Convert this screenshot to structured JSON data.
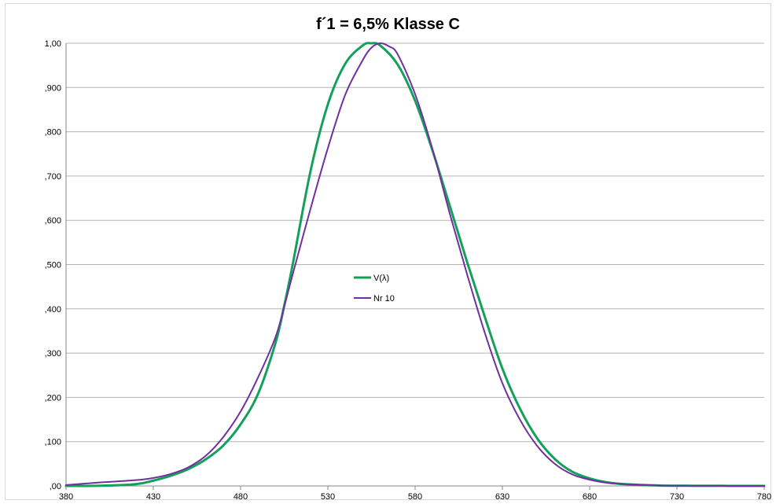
{
  "chart_data": {
    "type": "line",
    "title": "f´1 = 6,5% Klasse C",
    "xlabel": "",
    "ylabel": "",
    "xlim": [
      380,
      780
    ],
    "ylim": [
      0,
      1
    ],
    "x_ticks": [
      380,
      430,
      480,
      530,
      580,
      630,
      680,
      730,
      780
    ],
    "x_tick_labels": [
      "380",
      "430",
      "480",
      "530",
      "580",
      "630",
      "680",
      "730",
      "780"
    ],
    "y_ticks": [
      0,
      0.1,
      0.2,
      0.3,
      0.4,
      0.5,
      0.6,
      0.7,
      0.8,
      0.9,
      1.0
    ],
    "y_tick_labels": [
      ",00",
      ",100",
      ",200",
      ",300",
      ",400",
      ",500",
      ",600",
      ",700",
      ",800",
      ",900",
      "1,00"
    ],
    "grid": "horizontal",
    "legend_position": "center",
    "series": [
      {
        "name": "V(λ)",
        "color": "#13a05a",
        "x": [
          380,
          400,
          420,
          430,
          440,
          450,
          460,
          470,
          480,
          490,
          500,
          505,
          510,
          520,
          530,
          540,
          550,
          555,
          560,
          570,
          580,
          590,
          600,
          610,
          620,
          630,
          640,
          650,
          660,
          670,
          680,
          690,
          700,
          720,
          740,
          760,
          780
        ],
        "y": [
          0.0,
          0.0004,
          0.004,
          0.012,
          0.023,
          0.038,
          0.06,
          0.091,
          0.139,
          0.208,
          0.323,
          0.407,
          0.503,
          0.71,
          0.862,
          0.954,
          0.995,
          1.0,
          0.995,
          0.952,
          0.87,
          0.757,
          0.631,
          0.503,
          0.381,
          0.265,
          0.175,
          0.107,
          0.061,
          0.032,
          0.017,
          0.008,
          0.004,
          0.001,
          0.0003,
          0.0001,
          0.0
        ]
      },
      {
        "name": "Nr 10",
        "color": "#7030a0",
        "x": [
          380,
          400,
          420,
          430,
          440,
          450,
          460,
          470,
          480,
          490,
          500,
          505,
          510,
          520,
          530,
          540,
          550,
          555,
          560,
          565,
          570,
          580,
          590,
          600,
          610,
          620,
          630,
          640,
          650,
          660,
          670,
          680,
          690,
          700,
          720,
          740,
          760,
          780
        ],
        "y": [
          0.002,
          0.008,
          0.013,
          0.018,
          0.027,
          0.042,
          0.068,
          0.11,
          0.168,
          0.245,
          0.336,
          0.405,
          0.48,
          0.625,
          0.763,
          0.884,
          0.962,
          0.99,
          1.0,
          0.993,
          0.975,
          0.885,
          0.76,
          0.613,
          0.475,
          0.345,
          0.232,
          0.15,
          0.09,
          0.05,
          0.026,
          0.014,
          0.007,
          0.004,
          0.001,
          0.0003,
          0.0001,
          0.0
        ]
      }
    ]
  }
}
